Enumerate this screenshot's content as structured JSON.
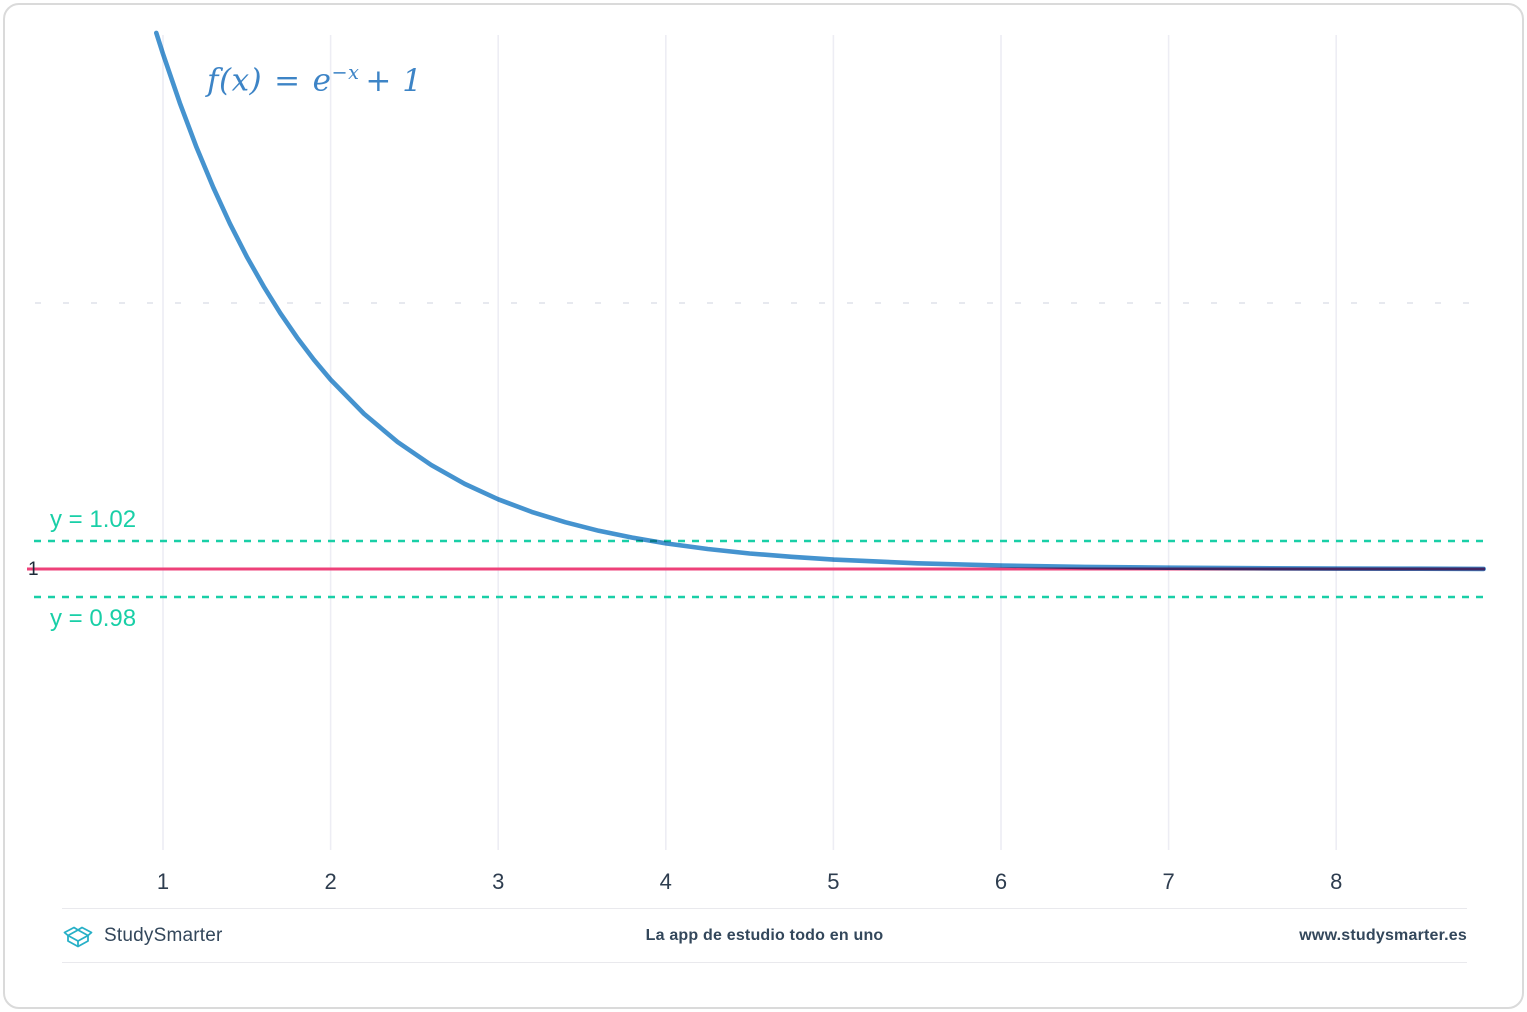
{
  "chart_data": {
    "type": "line",
    "title": "",
    "grid": "vertical-only",
    "legend": "none",
    "xlabel": "",
    "ylabel": "",
    "x_ticks": [
      1,
      2,
      3,
      4,
      5,
      6,
      7,
      8
    ],
    "x_range": [
      0.05,
      8.9
    ],
    "y_range": [
      0.4,
      1.385
    ],
    "function_label": {
      "prefix": "f(x)",
      "equals": "=",
      "base": "e",
      "exponent": "−x",
      "suffix": "+ 1"
    },
    "series": [
      {
        "name": "f(x) = e^(-x) + 1",
        "color": "#4593cf",
        "points": [
          [
            0.96,
            1.3829
          ],
          [
            1.0,
            1.3679
          ],
          [
            1.1,
            1.3329
          ],
          [
            1.2,
            1.3012
          ],
          [
            1.3,
            1.2725
          ],
          [
            1.4,
            1.2466
          ],
          [
            1.5,
            1.2231
          ],
          [
            1.6,
            1.2019
          ],
          [
            1.7,
            1.1827
          ],
          [
            1.8,
            1.1653
          ],
          [
            1.9,
            1.1496
          ],
          [
            2.0,
            1.1353
          ],
          [
            2.2,
            1.1108
          ],
          [
            2.4,
            1.0907
          ],
          [
            2.6,
            1.0743
          ],
          [
            2.8,
            1.0608
          ],
          [
            3.0,
            1.0498
          ],
          [
            3.2,
            1.0408
          ],
          [
            3.4,
            1.0334
          ],
          [
            3.6,
            1.0273
          ],
          [
            3.8,
            1.0224
          ],
          [
            4.0,
            1.0183
          ],
          [
            4.25,
            1.0143
          ],
          [
            4.5,
            1.0111
          ],
          [
            4.75,
            1.0087
          ],
          [
            5.0,
            1.0067
          ],
          [
            5.5,
            1.0041
          ],
          [
            6.0,
            1.0025
          ],
          [
            6.5,
            1.0015
          ],
          [
            7.0,
            1.0009
          ],
          [
            7.5,
            1.0006
          ],
          [
            8.0,
            1.0003
          ],
          [
            8.5,
            1.0002
          ],
          [
            8.88,
            1.0001
          ]
        ]
      }
    ],
    "asymptote": {
      "y": 1,
      "label": "1",
      "color": "#ee4179"
    },
    "epsilon_bands": [
      {
        "y": 1.02,
        "label": "y = 1.02",
        "style": "dashed",
        "color": "#19cfa7"
      },
      {
        "y": 0.98,
        "label": "y = 0.98",
        "style": "dashed",
        "color": "#19cfa7"
      }
    ]
  },
  "colors": {
    "curve": "#4593cf",
    "formula": "#3d84c6",
    "asymptote": "#ee4179",
    "band": "#19cfa7",
    "grid": "#ededf4",
    "minor_dash": "#dfe2ea",
    "tick_text": "#2e3d4f",
    "footer_text": "#33475b",
    "logo": "#27b0c7"
  },
  "footer": {
    "brand": "StudySmarter",
    "tagline": "La app de estudio todo en uno",
    "url": "www.studysmarter.es"
  }
}
